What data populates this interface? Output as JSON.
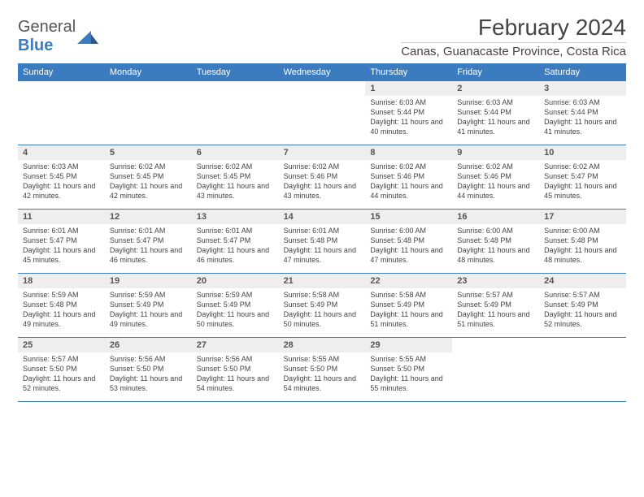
{
  "logo": {
    "textGray": "General",
    "textBlue": "Blue"
  },
  "title": "February 2024",
  "location": "Canas, Guanacaste Province, Costa Rica",
  "colors": {
    "headerBar": "#3b7bbf",
    "dayNumBg": "#eeeeee",
    "text": "#444444"
  },
  "dayNames": [
    "Sunday",
    "Monday",
    "Tuesday",
    "Wednesday",
    "Thursday",
    "Friday",
    "Saturday"
  ],
  "weeks": [
    [
      {
        "date": "",
        "sunrise": "",
        "sunset": "",
        "daylight": ""
      },
      {
        "date": "",
        "sunrise": "",
        "sunset": "",
        "daylight": ""
      },
      {
        "date": "",
        "sunrise": "",
        "sunset": "",
        "daylight": ""
      },
      {
        "date": "",
        "sunrise": "",
        "sunset": "",
        "daylight": ""
      },
      {
        "date": "1",
        "sunrise": "Sunrise: 6:03 AM",
        "sunset": "Sunset: 5:44 PM",
        "daylight": "Daylight: 11 hours and 40 minutes."
      },
      {
        "date": "2",
        "sunrise": "Sunrise: 6:03 AM",
        "sunset": "Sunset: 5:44 PM",
        "daylight": "Daylight: 11 hours and 41 minutes."
      },
      {
        "date": "3",
        "sunrise": "Sunrise: 6:03 AM",
        "sunset": "Sunset: 5:44 PM",
        "daylight": "Daylight: 11 hours and 41 minutes."
      }
    ],
    [
      {
        "date": "4",
        "sunrise": "Sunrise: 6:03 AM",
        "sunset": "Sunset: 5:45 PM",
        "daylight": "Daylight: 11 hours and 42 minutes."
      },
      {
        "date": "5",
        "sunrise": "Sunrise: 6:02 AM",
        "sunset": "Sunset: 5:45 PM",
        "daylight": "Daylight: 11 hours and 42 minutes."
      },
      {
        "date": "6",
        "sunrise": "Sunrise: 6:02 AM",
        "sunset": "Sunset: 5:45 PM",
        "daylight": "Daylight: 11 hours and 43 minutes."
      },
      {
        "date": "7",
        "sunrise": "Sunrise: 6:02 AM",
        "sunset": "Sunset: 5:46 PM",
        "daylight": "Daylight: 11 hours and 43 minutes."
      },
      {
        "date": "8",
        "sunrise": "Sunrise: 6:02 AM",
        "sunset": "Sunset: 5:46 PM",
        "daylight": "Daylight: 11 hours and 44 minutes."
      },
      {
        "date": "9",
        "sunrise": "Sunrise: 6:02 AM",
        "sunset": "Sunset: 5:46 PM",
        "daylight": "Daylight: 11 hours and 44 minutes."
      },
      {
        "date": "10",
        "sunrise": "Sunrise: 6:02 AM",
        "sunset": "Sunset: 5:47 PM",
        "daylight": "Daylight: 11 hours and 45 minutes."
      }
    ],
    [
      {
        "date": "11",
        "sunrise": "Sunrise: 6:01 AM",
        "sunset": "Sunset: 5:47 PM",
        "daylight": "Daylight: 11 hours and 45 minutes."
      },
      {
        "date": "12",
        "sunrise": "Sunrise: 6:01 AM",
        "sunset": "Sunset: 5:47 PM",
        "daylight": "Daylight: 11 hours and 46 minutes."
      },
      {
        "date": "13",
        "sunrise": "Sunrise: 6:01 AM",
        "sunset": "Sunset: 5:47 PM",
        "daylight": "Daylight: 11 hours and 46 minutes."
      },
      {
        "date": "14",
        "sunrise": "Sunrise: 6:01 AM",
        "sunset": "Sunset: 5:48 PM",
        "daylight": "Daylight: 11 hours and 47 minutes."
      },
      {
        "date": "15",
        "sunrise": "Sunrise: 6:00 AM",
        "sunset": "Sunset: 5:48 PM",
        "daylight": "Daylight: 11 hours and 47 minutes."
      },
      {
        "date": "16",
        "sunrise": "Sunrise: 6:00 AM",
        "sunset": "Sunset: 5:48 PM",
        "daylight": "Daylight: 11 hours and 48 minutes."
      },
      {
        "date": "17",
        "sunrise": "Sunrise: 6:00 AM",
        "sunset": "Sunset: 5:48 PM",
        "daylight": "Daylight: 11 hours and 48 minutes."
      }
    ],
    [
      {
        "date": "18",
        "sunrise": "Sunrise: 5:59 AM",
        "sunset": "Sunset: 5:48 PM",
        "daylight": "Daylight: 11 hours and 49 minutes."
      },
      {
        "date": "19",
        "sunrise": "Sunrise: 5:59 AM",
        "sunset": "Sunset: 5:49 PM",
        "daylight": "Daylight: 11 hours and 49 minutes."
      },
      {
        "date": "20",
        "sunrise": "Sunrise: 5:59 AM",
        "sunset": "Sunset: 5:49 PM",
        "daylight": "Daylight: 11 hours and 50 minutes."
      },
      {
        "date": "21",
        "sunrise": "Sunrise: 5:58 AM",
        "sunset": "Sunset: 5:49 PM",
        "daylight": "Daylight: 11 hours and 50 minutes."
      },
      {
        "date": "22",
        "sunrise": "Sunrise: 5:58 AM",
        "sunset": "Sunset: 5:49 PM",
        "daylight": "Daylight: 11 hours and 51 minutes."
      },
      {
        "date": "23",
        "sunrise": "Sunrise: 5:57 AM",
        "sunset": "Sunset: 5:49 PM",
        "daylight": "Daylight: 11 hours and 51 minutes."
      },
      {
        "date": "24",
        "sunrise": "Sunrise: 5:57 AM",
        "sunset": "Sunset: 5:49 PM",
        "daylight": "Daylight: 11 hours and 52 minutes."
      }
    ],
    [
      {
        "date": "25",
        "sunrise": "Sunrise: 5:57 AM",
        "sunset": "Sunset: 5:50 PM",
        "daylight": "Daylight: 11 hours and 52 minutes."
      },
      {
        "date": "26",
        "sunrise": "Sunrise: 5:56 AM",
        "sunset": "Sunset: 5:50 PM",
        "daylight": "Daylight: 11 hours and 53 minutes."
      },
      {
        "date": "27",
        "sunrise": "Sunrise: 5:56 AM",
        "sunset": "Sunset: 5:50 PM",
        "daylight": "Daylight: 11 hours and 54 minutes."
      },
      {
        "date": "28",
        "sunrise": "Sunrise: 5:55 AM",
        "sunset": "Sunset: 5:50 PM",
        "daylight": "Daylight: 11 hours and 54 minutes."
      },
      {
        "date": "29",
        "sunrise": "Sunrise: 5:55 AM",
        "sunset": "Sunset: 5:50 PM",
        "daylight": "Daylight: 11 hours and 55 minutes."
      },
      {
        "date": "",
        "sunrise": "",
        "sunset": "",
        "daylight": ""
      },
      {
        "date": "",
        "sunrise": "",
        "sunset": "",
        "daylight": ""
      }
    ]
  ]
}
